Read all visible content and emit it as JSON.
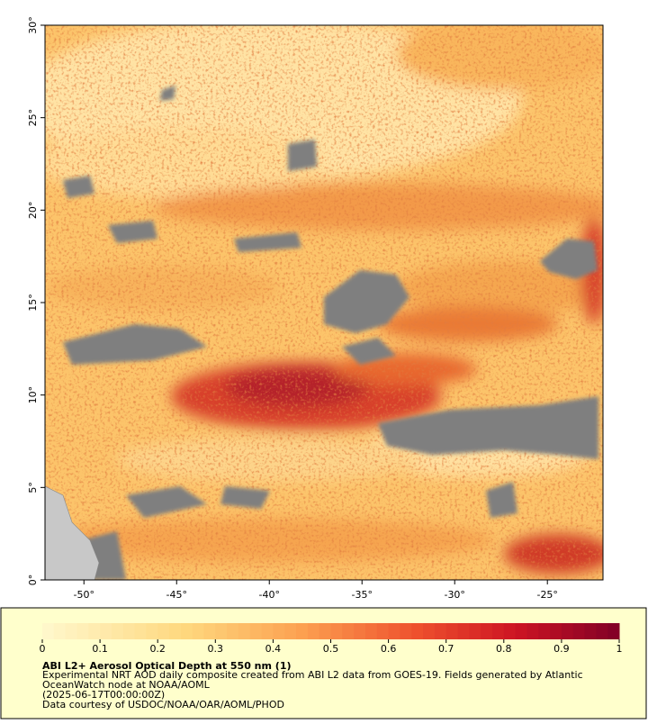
{
  "map": {
    "xlim": [
      -52.1,
      -22
    ],
    "ylim": [
      0,
      30
    ],
    "xticks": [
      {
        "value": -50,
        "label": "-50°"
      },
      {
        "value": -45,
        "label": "-45°"
      },
      {
        "value": -40,
        "label": "-40°"
      },
      {
        "value": -35,
        "label": "-35°"
      },
      {
        "value": -30,
        "label": "-30°"
      },
      {
        "value": -25,
        "label": "-25°"
      }
    ],
    "yticks": [
      {
        "value": 0,
        "label": "0°"
      },
      {
        "value": 5,
        "label": "5°"
      },
      {
        "value": 10,
        "label": "10°"
      },
      {
        "value": 15,
        "label": "15°"
      },
      {
        "value": 20,
        "label": "20°"
      },
      {
        "value": 25,
        "label": "25°"
      },
      {
        "value": 30,
        "label": "30°"
      }
    ]
  },
  "colorbar": {
    "range": [
      0,
      1
    ],
    "ticks": [
      0,
      0.1,
      0.2,
      0.3,
      0.4,
      0.5,
      0.6,
      0.7,
      0.8,
      0.9,
      1
    ]
  },
  "caption": {
    "title": "ABI L2+ Aerosol Optical Depth at 550 nm (1)",
    "lines": [
      "Experimental NRT AOD daily composite created from ABI L2 data from GOES-19. Fields generated by Atlantic",
      "OceanWatch node at NOAA/AOML",
      "(2025-06-17T00:00:00Z)",
      "Data courtesy of USDOC/NOAA/OAR/AOML/PHOD"
    ]
  }
}
